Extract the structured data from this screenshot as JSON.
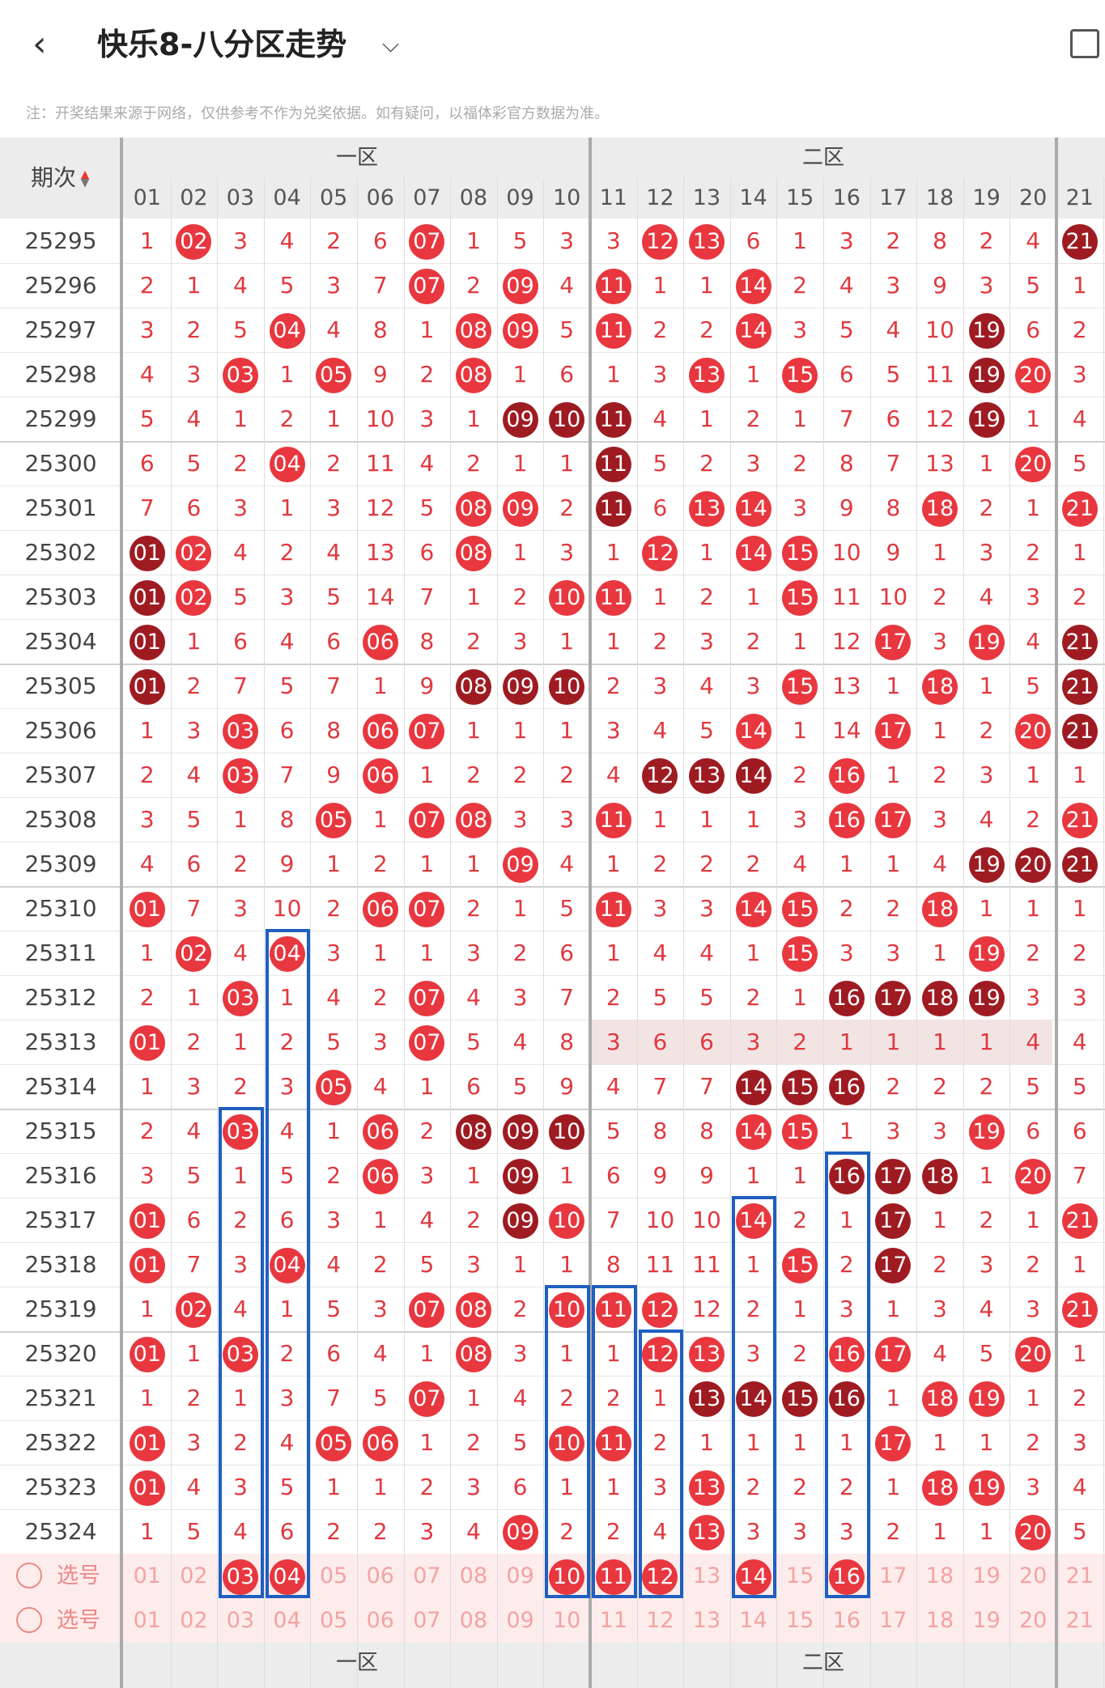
{
  "header": {
    "title": "快乐8-八分区走势",
    "back_icon": "chevron-left-icon",
    "dropdown_icon": "chevron-down-icon",
    "rotate_icon": "rotate-screen-icon"
  },
  "note": "注：开奖结果来源于网络，仅供参考不作为兑奖依据。如有疑问，以福体彩官方数据为准。",
  "table": {
    "col_issue_header": "期次",
    "zones": [
      "一区",
      "二区"
    ],
    "columns": [
      "01",
      "02",
      "03",
      "04",
      "05",
      "06",
      "07",
      "08",
      "09",
      "10",
      "11",
      "12",
      "13",
      "14",
      "15",
      "16",
      "17",
      "18",
      "19",
      "20",
      "21"
    ],
    "rows": [
      {
        "issue": "25295",
        "cells": [
          "1",
          "02",
          "3",
          "4",
          "2",
          "6",
          "07",
          "1",
          "5",
          "3",
          "3",
          "12",
          "13",
          "6",
          "1",
          "3",
          "2",
          "8",
          "2",
          "4",
          "21"
        ],
        "dark": [
          20
        ]
      },
      {
        "issue": "25296",
        "cells": [
          "2",
          "1",
          "4",
          "5",
          "3",
          "7",
          "07",
          "2",
          "09",
          "4",
          "11",
          "1",
          "1",
          "14",
          "2",
          "4",
          "3",
          "9",
          "3",
          "5",
          "1"
        ],
        "dark": []
      },
      {
        "issue": "25297",
        "cells": [
          "3",
          "2",
          "5",
          "04",
          "4",
          "8",
          "1",
          "08",
          "09",
          "5",
          "11",
          "2",
          "2",
          "14",
          "3",
          "5",
          "4",
          "10",
          "19",
          "6",
          "2"
        ],
        "dark": [
          18
        ]
      },
      {
        "issue": "25298",
        "cells": [
          "4",
          "3",
          "03",
          "1",
          "05",
          "9",
          "2",
          "08",
          "1",
          "6",
          "1",
          "3",
          "13",
          "1",
          "15",
          "6",
          "5",
          "11",
          "19",
          "20",
          "3"
        ],
        "dark": [
          18
        ]
      },
      {
        "issue": "25299",
        "cells": [
          "5",
          "4",
          "1",
          "2",
          "1",
          "10",
          "3",
          "1",
          "09",
          "10",
          "11",
          "4",
          "1",
          "2",
          "1",
          "7",
          "6",
          "12",
          "19",
          "1",
          "4"
        ],
        "dark": [
          8,
          9,
          10,
          18
        ]
      },
      {
        "issue": "25300",
        "cells": [
          "6",
          "5",
          "2",
          "04",
          "2",
          "11",
          "4",
          "2",
          "1",
          "1",
          "11",
          "5",
          "2",
          "3",
          "2",
          "8",
          "7",
          "13",
          "1",
          "20",
          "5"
        ],
        "dark": [
          10
        ]
      },
      {
        "issue": "25301",
        "cells": [
          "7",
          "6",
          "3",
          "1",
          "3",
          "12",
          "5",
          "08",
          "09",
          "2",
          "11",
          "6",
          "13",
          "14",
          "3",
          "9",
          "8",
          "18",
          "2",
          "1",
          "21"
        ],
        "dark": [
          10
        ]
      },
      {
        "issue": "25302",
        "cells": [
          "01",
          "02",
          "4",
          "2",
          "4",
          "13",
          "6",
          "08",
          "1",
          "3",
          "1",
          "12",
          "1",
          "14",
          "15",
          "10",
          "9",
          "1",
          "3",
          "2",
          "1"
        ],
        "dark": [
          0
        ]
      },
      {
        "issue": "25303",
        "cells": [
          "01",
          "02",
          "5",
          "3",
          "5",
          "14",
          "7",
          "1",
          "2",
          "10",
          "11",
          "1",
          "2",
          "1",
          "15",
          "11",
          "10",
          "2",
          "4",
          "3",
          "2"
        ],
        "dark": [
          0
        ]
      },
      {
        "issue": "25304",
        "cells": [
          "01",
          "1",
          "6",
          "4",
          "6",
          "06",
          "8",
          "2",
          "3",
          "1",
          "1",
          "2",
          "3",
          "2",
          "1",
          "12",
          "17",
          "3",
          "19",
          "4",
          "21"
        ],
        "dark": [
          0,
          20
        ]
      },
      {
        "issue": "25305",
        "cells": [
          "01",
          "2",
          "7",
          "5",
          "7",
          "1",
          "9",
          "08",
          "09",
          "10",
          "2",
          "3",
          "4",
          "3",
          "15",
          "13",
          "1",
          "18",
          "1",
          "5",
          "21"
        ],
        "dark": [
          0,
          7,
          8,
          9,
          20
        ]
      },
      {
        "issue": "25306",
        "cells": [
          "1",
          "3",
          "03",
          "6",
          "8",
          "06",
          "07",
          "1",
          "1",
          "1",
          "3",
          "4",
          "5",
          "14",
          "1",
          "14",
          "17",
          "1",
          "2",
          "20",
          "21"
        ],
        "dark": [
          20
        ]
      },
      {
        "issue": "25307",
        "cells": [
          "2",
          "4",
          "03",
          "7",
          "9",
          "06",
          "1",
          "2",
          "2",
          "2",
          "4",
          "12",
          "13",
          "14",
          "2",
          "16",
          "1",
          "2",
          "3",
          "1",
          "1"
        ],
        "dark": [
          11,
          12,
          13
        ]
      },
      {
        "issue": "25308",
        "cells": [
          "3",
          "5",
          "1",
          "8",
          "05",
          "1",
          "07",
          "08",
          "3",
          "3",
          "11",
          "1",
          "1",
          "1",
          "3",
          "16",
          "17",
          "3",
          "4",
          "2",
          "21"
        ],
        "dark": []
      },
      {
        "issue": "25309",
        "cells": [
          "4",
          "6",
          "2",
          "9",
          "1",
          "2",
          "1",
          "1",
          "09",
          "4",
          "1",
          "2",
          "2",
          "2",
          "4",
          "1",
          "1",
          "4",
          "19",
          "20",
          "21"
        ],
        "dark": [
          18,
          19,
          20
        ]
      },
      {
        "issue": "25310",
        "cells": [
          "01",
          "7",
          "3",
          "10",
          "2",
          "06",
          "07",
          "2",
          "1",
          "5",
          "11",
          "3",
          "3",
          "14",
          "15",
          "2",
          "2",
          "18",
          "1",
          "1",
          "1"
        ],
        "dark": []
      },
      {
        "issue": "25311",
        "cells": [
          "1",
          "02",
          "4",
          "04",
          "3",
          "1",
          "1",
          "3",
          "2",
          "6",
          "1",
          "4",
          "4",
          "1",
          "15",
          "3",
          "3",
          "1",
          "19",
          "2",
          "2"
        ],
        "dark": []
      },
      {
        "issue": "25312",
        "cells": [
          "2",
          "1",
          "03",
          "1",
          "4",
          "2",
          "07",
          "4",
          "3",
          "7",
          "2",
          "5",
          "5",
          "2",
          "1",
          "16",
          "17",
          "18",
          "19",
          "3",
          "3"
        ],
        "dark": [
          15,
          16,
          17,
          18
        ]
      },
      {
        "issue": "25313",
        "cells": [
          "01",
          "2",
          "1",
          "2",
          "5",
          "3",
          "07",
          "5",
          "4",
          "8",
          "3",
          "6",
          "6",
          "3",
          "2",
          "1",
          "1",
          "1",
          "1",
          "4",
          "4"
        ],
        "dark": []
      },
      {
        "issue": "25314",
        "cells": [
          "1",
          "3",
          "2",
          "3",
          "05",
          "4",
          "1",
          "6",
          "5",
          "9",
          "4",
          "7",
          "7",
          "14",
          "15",
          "16",
          "2",
          "2",
          "2",
          "5",
          "5"
        ],
        "dark": [
          13,
          14,
          15
        ]
      },
      {
        "issue": "25315",
        "cells": [
          "2",
          "4",
          "03",
          "4",
          "1",
          "06",
          "2",
          "08",
          "09",
          "10",
          "5",
          "8",
          "8",
          "14",
          "15",
          "1",
          "3",
          "3",
          "19",
          "6",
          "6"
        ],
        "dark": [
          7,
          8,
          9
        ]
      },
      {
        "issue": "25316",
        "cells": [
          "3",
          "5",
          "1",
          "5",
          "2",
          "06",
          "3",
          "1",
          "09",
          "1",
          "6",
          "9",
          "9",
          "1",
          "1",
          "16",
          "17",
          "18",
          "1",
          "20",
          "7"
        ],
        "dark": [
          8,
          15,
          16,
          17
        ]
      },
      {
        "issue": "25317",
        "cells": [
          "01",
          "6",
          "2",
          "6",
          "3",
          "1",
          "4",
          "2",
          "09",
          "10",
          "7",
          "10",
          "10",
          "14",
          "2",
          "1",
          "17",
          "1",
          "2",
          "1",
          "21"
        ],
        "dark": [
          8,
          16
        ]
      },
      {
        "issue": "25318",
        "cells": [
          "01",
          "7",
          "3",
          "04",
          "4",
          "2",
          "5",
          "3",
          "1",
          "1",
          "8",
          "11",
          "11",
          "1",
          "15",
          "2",
          "17",
          "2",
          "3",
          "2",
          "1"
        ],
        "dark": [
          16
        ]
      },
      {
        "issue": "25319",
        "cells": [
          "1",
          "02",
          "4",
          "1",
          "5",
          "3",
          "07",
          "08",
          "2",
          "10",
          "11",
          "12",
          "12",
          "2",
          "1",
          "3",
          "1",
          "3",
          "4",
          "3",
          "21"
        ],
        "dark": []
      },
      {
        "issue": "25320",
        "cells": [
          "01",
          "1",
          "03",
          "2",
          "6",
          "4",
          "1",
          "08",
          "3",
          "1",
          "1",
          "12",
          "13",
          "3",
          "2",
          "16",
          "17",
          "4",
          "5",
          "20",
          "1"
        ],
        "dark": []
      },
      {
        "issue": "25321",
        "cells": [
          "1",
          "2",
          "1",
          "3",
          "7",
          "5",
          "07",
          "1",
          "4",
          "2",
          "2",
          "1",
          "13",
          "14",
          "15",
          "16",
          "1",
          "18",
          "19",
          "1",
          "2"
        ],
        "dark": [
          12,
          13,
          14,
          15
        ]
      },
      {
        "issue": "25322",
        "cells": [
          "01",
          "3",
          "2",
          "4",
          "05",
          "06",
          "1",
          "2",
          "5",
          "10",
          "11",
          "2",
          "1",
          "1",
          "1",
          "1",
          "17",
          "1",
          "1",
          "2",
          "3"
        ],
        "dark": []
      },
      {
        "issue": "25323",
        "cells": [
          "01",
          "4",
          "3",
          "5",
          "1",
          "1",
          "2",
          "3",
          "6",
          "1",
          "1",
          "3",
          "13",
          "2",
          "2",
          "2",
          "1",
          "18",
          "19",
          "3",
          "4"
        ],
        "dark": []
      },
      {
        "issue": "25324",
        "cells": [
          "1",
          "5",
          "4",
          "6",
          "2",
          "2",
          "3",
          "4",
          "09",
          "2",
          "2",
          "4",
          "13",
          "3",
          "3",
          "3",
          "2",
          "1",
          "1",
          "20",
          "5"
        ],
        "dark": []
      }
    ],
    "pick_label": "选号",
    "pick_selected": [
      "03",
      "04",
      "10",
      "11",
      "12",
      "14",
      "16"
    ],
    "footer_zones": [
      "一区",
      "二区"
    ]
  },
  "colors": {
    "red": "#e8373f",
    "dark": "#9e1b22",
    "number_text": "#e0393f",
    "box": "#1f5fbf"
  }
}
